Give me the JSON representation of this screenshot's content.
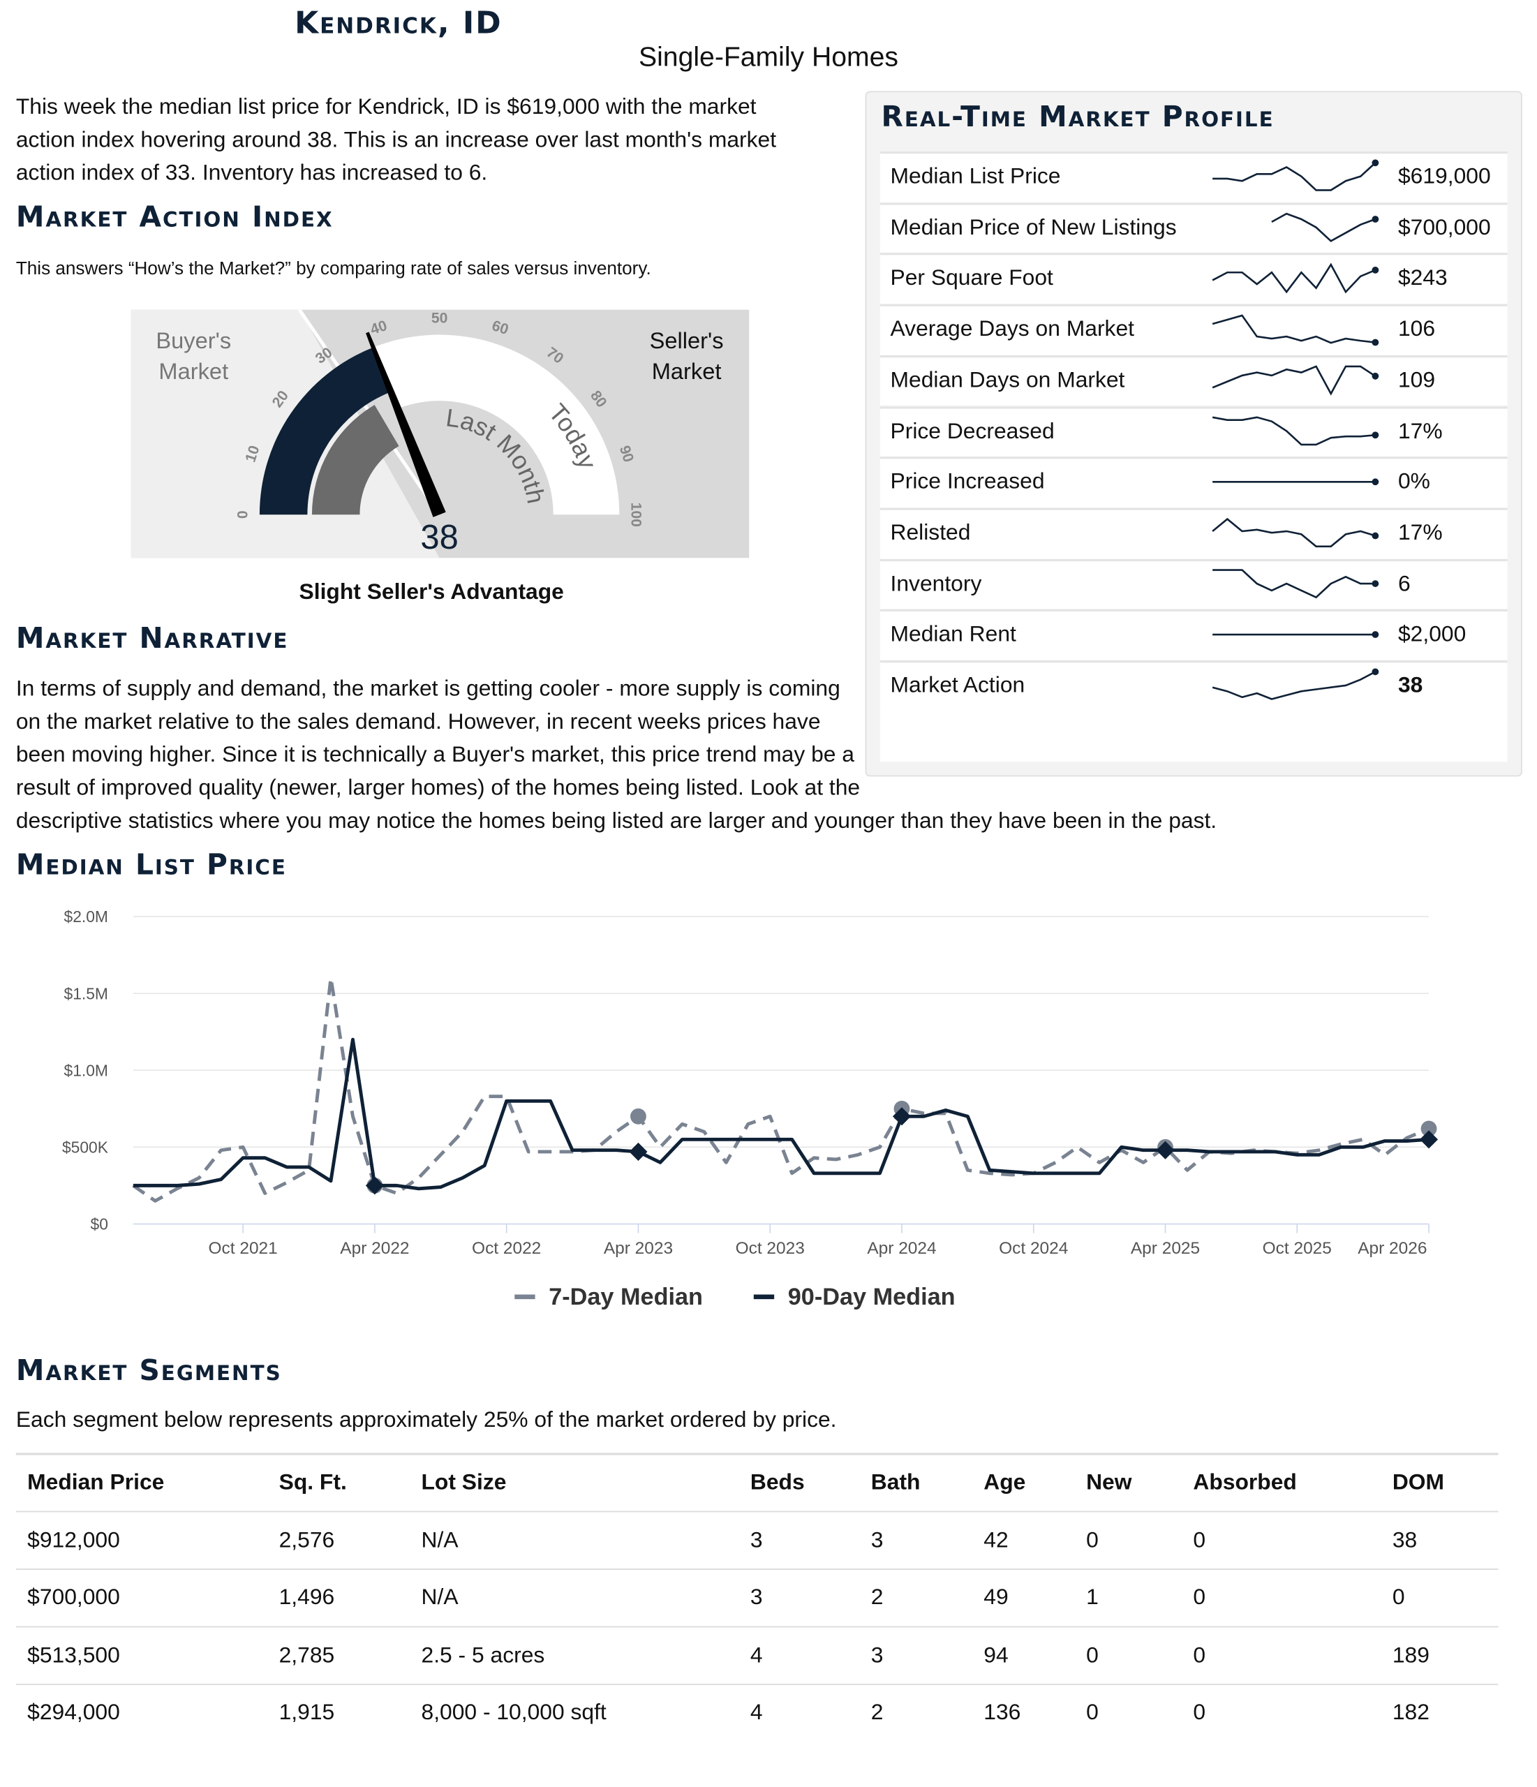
{
  "header": {
    "title": "Kendrick, ID",
    "subtitle": "Single-Family Homes"
  },
  "intro": "This week the median list price for Kendrick, ID is $619,000 with the market action index hovering around 38. This is an increase over last month's market action index of 33. Inventory has increased to 6.",
  "market_action_index": {
    "heading": "Market Action Index",
    "description": "This answers “How’s the Market?” by comparing rate of sales versus inventory.",
    "gauge": {
      "buyers_label": "Buyer's Market",
      "sellers_label": "Seller's Market",
      "value": 38,
      "last_month": 33,
      "ticks": [
        0,
        10,
        20,
        30,
        40,
        50,
        60,
        70,
        80,
        90,
        100
      ],
      "last_month_label": "Last Month",
      "today_label": "Today"
    },
    "caption": "Slight Seller's Advantage"
  },
  "narrative": {
    "heading": "Market Narrative",
    "text": "In terms of supply and demand, the market is getting cooler - more supply is coming on the market relative to the sales demand. However, in recent weeks prices have been moving higher. Since it is technically a Buyer's market, this price trend may be a result of improved quality (newer, larger homes) of the homes being listed. Look at the descriptive statistics where you may notice the homes being listed are larger and younger than they have been in the past."
  },
  "profile": {
    "heading": "Real-Time Market Profile",
    "rows": [
      {
        "label": "Median List Price",
        "value": "$619,000",
        "trend": [
          550000,
          550000,
          540000,
          570000,
          570000,
          600000,
          560000,
          500000,
          500000,
          540000,
          560000,
          619000
        ]
      },
      {
        "label": "Median Price of New Listings",
        "value": "$700,000",
        "trend": [
          null,
          null,
          null,
          null,
          690000,
          720000,
          700000,
          670000,
          620000,
          650000,
          680000,
          700000
        ]
      },
      {
        "label": "Per Square Foot",
        "value": "$243",
        "trend": [
          230,
          240,
          240,
          225,
          240,
          215,
          240,
          220,
          250,
          215,
          235,
          243
        ]
      },
      {
        "label": "Average Days on Market",
        "value": "106",
        "trend": [
          150,
          160,
          170,
          120,
          115,
          120,
          110,
          120,
          105,
          115,
          110,
          106
        ]
      },
      {
        "label": "Median Days on Market",
        "value": "109",
        "trend": [
          90,
          100,
          110,
          115,
          110,
          120,
          115,
          125,
          80,
          125,
          125,
          109
        ]
      },
      {
        "label": "Price Decreased",
        "value": "17%",
        "trend": [
          30,
          28,
          28,
          30,
          27,
          20,
          10,
          10,
          15,
          16,
          16,
          17
        ]
      },
      {
        "label": "Price Increased",
        "value": "0%",
        "trend": [
          0,
          0,
          0,
          0,
          0,
          0,
          0,
          0,
          0,
          0,
          0,
          0
        ]
      },
      {
        "label": "Relisted",
        "value": "17%",
        "trend": [
          20,
          28,
          20,
          21,
          19,
          20,
          18,
          10,
          10,
          18,
          20,
          17
        ]
      },
      {
        "label": "Inventory",
        "value": "6",
        "trend": [
          8,
          8,
          8,
          6,
          5,
          6,
          5,
          4,
          6,
          7,
          6,
          6
        ]
      },
      {
        "label": "Median Rent",
        "value": "$2,000",
        "trend": [
          2000,
          2000,
          2000,
          2000,
          2000,
          2000,
          2000,
          2000,
          2000,
          2000,
          2000,
          2000
        ]
      },
      {
        "label": "Market Action",
        "value": "38",
        "trend": [
          30,
          28,
          25,
          27,
          24,
          26,
          28,
          29,
          30,
          31,
          34,
          38
        ]
      }
    ],
    "caption": "Slight Seller's Advantage"
  },
  "chart_data": {
    "type": "line",
    "title": "Median List Price",
    "x": [
      "2021-05",
      "2021-06",
      "2021-07",
      "2021-08",
      "2021-09",
      "2021-10",
      "2021-11",
      "2021-12",
      "2022-01",
      "2022-02",
      "2022-03",
      "2022-04",
      "2022-05",
      "2022-06",
      "2022-07",
      "2022-08",
      "2022-09",
      "2022-10",
      "2022-11",
      "2022-12",
      "2023-01",
      "2023-02",
      "2023-03",
      "2023-04",
      "2023-05",
      "2023-06",
      "2023-07",
      "2023-08",
      "2023-09",
      "2023-10",
      "2023-11",
      "2023-12",
      "2024-01",
      "2024-02",
      "2024-03",
      "2024-04",
      "2024-05",
      "2024-06",
      "2024-07",
      "2024-08",
      "2024-09",
      "2024-10",
      "2024-11",
      "2024-12",
      "2025-01",
      "2025-02",
      "2025-03",
      "2025-04",
      "2025-05",
      "2025-06",
      "2025-07",
      "2025-08",
      "2025-09",
      "2025-10",
      "2025-11",
      "2025-12",
      "2026-01",
      "2026-02",
      "2026-03",
      "2026-04"
    ],
    "xlim": [
      "2021-05",
      "2026-04"
    ],
    "xticks": [
      {
        "value": "2021-10",
        "label": "Oct 2021"
      },
      {
        "value": "2022-04",
        "label": "Apr 2022"
      },
      {
        "value": "2022-10",
        "label": "Oct 2022"
      },
      {
        "value": "2023-04",
        "label": "Apr 2023"
      },
      {
        "value": "2023-10",
        "label": "Oct 2023"
      },
      {
        "value": "2024-04",
        "label": "Apr 2024"
      },
      {
        "value": "2024-10",
        "label": "Oct 2024"
      },
      {
        "value": "2025-04",
        "label": "Apr 2025"
      },
      {
        "value": "2025-10",
        "label": "Oct 2025"
      },
      {
        "value": "2026-04",
        "label": "Apr 2026"
      }
    ],
    "ylim": [
      0,
      2000000
    ],
    "yticks": [
      {
        "value": 0,
        "label": "$0"
      },
      {
        "value": 500000,
        "label": "$500K"
      },
      {
        "value": 1000000,
        "label": "$1.0M"
      },
      {
        "value": 1500000,
        "label": "$1.5M"
      },
      {
        "value": 2000000,
        "label": "$2.0M"
      }
    ],
    "grid": true,
    "series": [
      {
        "name": "7-Day Median",
        "color": "#7a8391",
        "dashed": true,
        "marker": "circle",
        "values": [
          250000,
          150000,
          230000,
          300000,
          480000,
          500000,
          200000,
          270000,
          350000,
          1600000,
          700000,
          250000,
          200000,
          300000,
          450000,
          600000,
          830000,
          830000,
          470000,
          470000,
          470000,
          480000,
          600000,
          700000,
          500000,
          650000,
          600000,
          400000,
          650000,
          700000,
          330000,
          430000,
          420000,
          450000,
          500000,
          750000,
          720000,
          720000,
          350000,
          330000,
          320000,
          330000,
          400000,
          500000,
          400000,
          480000,
          400000,
          500000,
          350000,
          470000,
          460000,
          480000,
          470000,
          460000,
          480000,
          520000,
          550000,
          450000,
          560000,
          620000
        ]
      },
      {
        "name": "90-Day Median",
        "color": "#0f2136",
        "dashed": false,
        "marker": "diamond",
        "values": [
          250000,
          250000,
          250000,
          260000,
          290000,
          430000,
          430000,
          370000,
          370000,
          280000,
          1200000,
          250000,
          250000,
          230000,
          240000,
          300000,
          380000,
          800000,
          800000,
          800000,
          480000,
          480000,
          480000,
          470000,
          400000,
          550000,
          550000,
          550000,
          550000,
          550000,
          550000,
          330000,
          330000,
          330000,
          330000,
          700000,
          700000,
          740000,
          700000,
          350000,
          340000,
          330000,
          330000,
          330000,
          330000,
          500000,
          480000,
          480000,
          480000,
          470000,
          470000,
          470000,
          470000,
          450000,
          450000,
          500000,
          500000,
          540000,
          540000,
          550000
        ]
      }
    ]
  },
  "segments": {
    "heading": "Market Segments",
    "description": "Each segment below represents approximately 25% of the market ordered by price.",
    "columns": [
      "Median Price",
      "Sq. Ft.",
      "Lot Size",
      "Beds",
      "Bath",
      "Age",
      "New",
      "Absorbed",
      "DOM"
    ],
    "rows": [
      [
        "$912,000",
        "2,576",
        "N/A",
        "3",
        "3",
        "42",
        "0",
        "0",
        "38"
      ],
      [
        "$700,000",
        "1,496",
        "N/A",
        "3",
        "2",
        "49",
        "1",
        "0",
        "0"
      ],
      [
        "$513,500",
        "2,785",
        "2.5 - 5 acres",
        "4",
        "3",
        "94",
        "0",
        "0",
        "189"
      ],
      [
        "$294,000",
        "1,915",
        "8,000 - 10,000 sqft",
        "4",
        "2",
        "136",
        "0",
        "0",
        "182"
      ]
    ]
  }
}
